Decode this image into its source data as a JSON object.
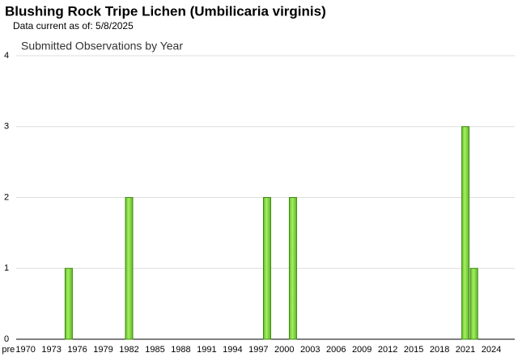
{
  "chart_data": {
    "type": "bar",
    "title": "Blushing Rock Tripe Lichen   (Umbilicaria virginis)",
    "subtitle": "Data current as of: 5/8/2025",
    "chart_title": "Submitted Observations by Year",
    "categories": [
      "pre",
      null,
      "1970",
      null,
      null,
      "1973",
      null,
      null,
      "1976",
      null,
      null,
      "1979",
      null,
      null,
      "1982",
      null,
      null,
      "1985",
      null,
      null,
      "1988",
      null,
      null,
      "1991",
      null,
      null,
      "1994",
      null,
      null,
      "1997",
      null,
      null,
      "2000",
      null,
      null,
      "2003",
      null,
      null,
      "2006",
      null,
      null,
      "2009",
      null,
      null,
      "2012",
      null,
      null,
      "2015",
      null,
      null,
      "2018",
      null,
      null,
      "2021",
      null,
      null,
      "2024",
      null
    ],
    "values": [
      0,
      0,
      0,
      0,
      0,
      0,
      0,
      1,
      0,
      0,
      0,
      0,
      0,
      0,
      2,
      0,
      0,
      0,
      0,
      0,
      0,
      0,
      0,
      0,
      0,
      0,
      0,
      0,
      0,
      0,
      2,
      0,
      0,
      2,
      0,
      0,
      0,
      0,
      0,
      0,
      0,
      0,
      0,
      0,
      0,
      0,
      0,
      0,
      0,
      0,
      0,
      0,
      0,
      3,
      1,
      0,
      0,
      0
    ],
    "color": "#7ed639",
    "ylim": [
      0,
      4
    ],
    "yticks": [
      0,
      1,
      2,
      3,
      4
    ],
    "grid": true
  }
}
